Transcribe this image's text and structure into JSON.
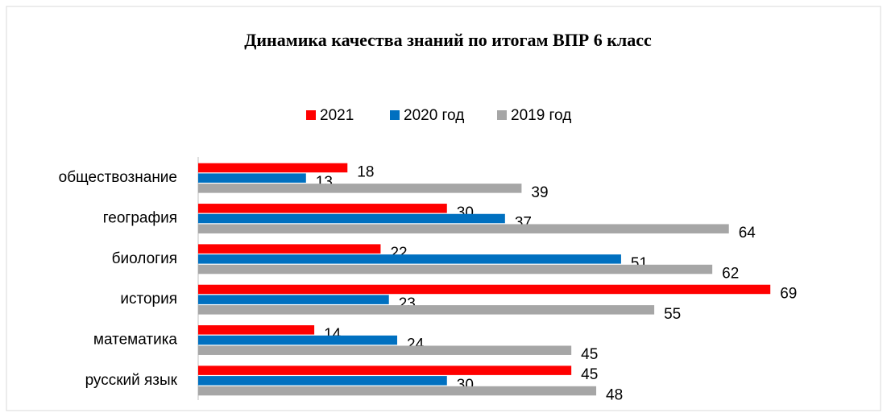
{
  "chart_data": {
    "type": "bar",
    "orientation": "horizontal",
    "title": "Динамика качества знаний по итогам ВПР 6 класс",
    "categories": [
      "обществознание",
      "география",
      "биология",
      "история",
      "математика",
      "русский язык"
    ],
    "series": [
      {
        "name": "2021",
        "color": "#ff0000",
        "values": [
          18,
          30,
          22,
          69,
          14,
          45
        ]
      },
      {
        "name": "2020 год",
        "color": "#0070c0",
        "values": [
          13,
          37,
          51,
          23,
          24,
          30
        ]
      },
      {
        "name": "2019 год",
        "color": "#a6a6a6",
        "values": [
          39,
          64,
          62,
          55,
          45,
          48
        ]
      }
    ],
    "xlim": [
      0,
      82
    ],
    "grid": false,
    "legend": "top"
  }
}
